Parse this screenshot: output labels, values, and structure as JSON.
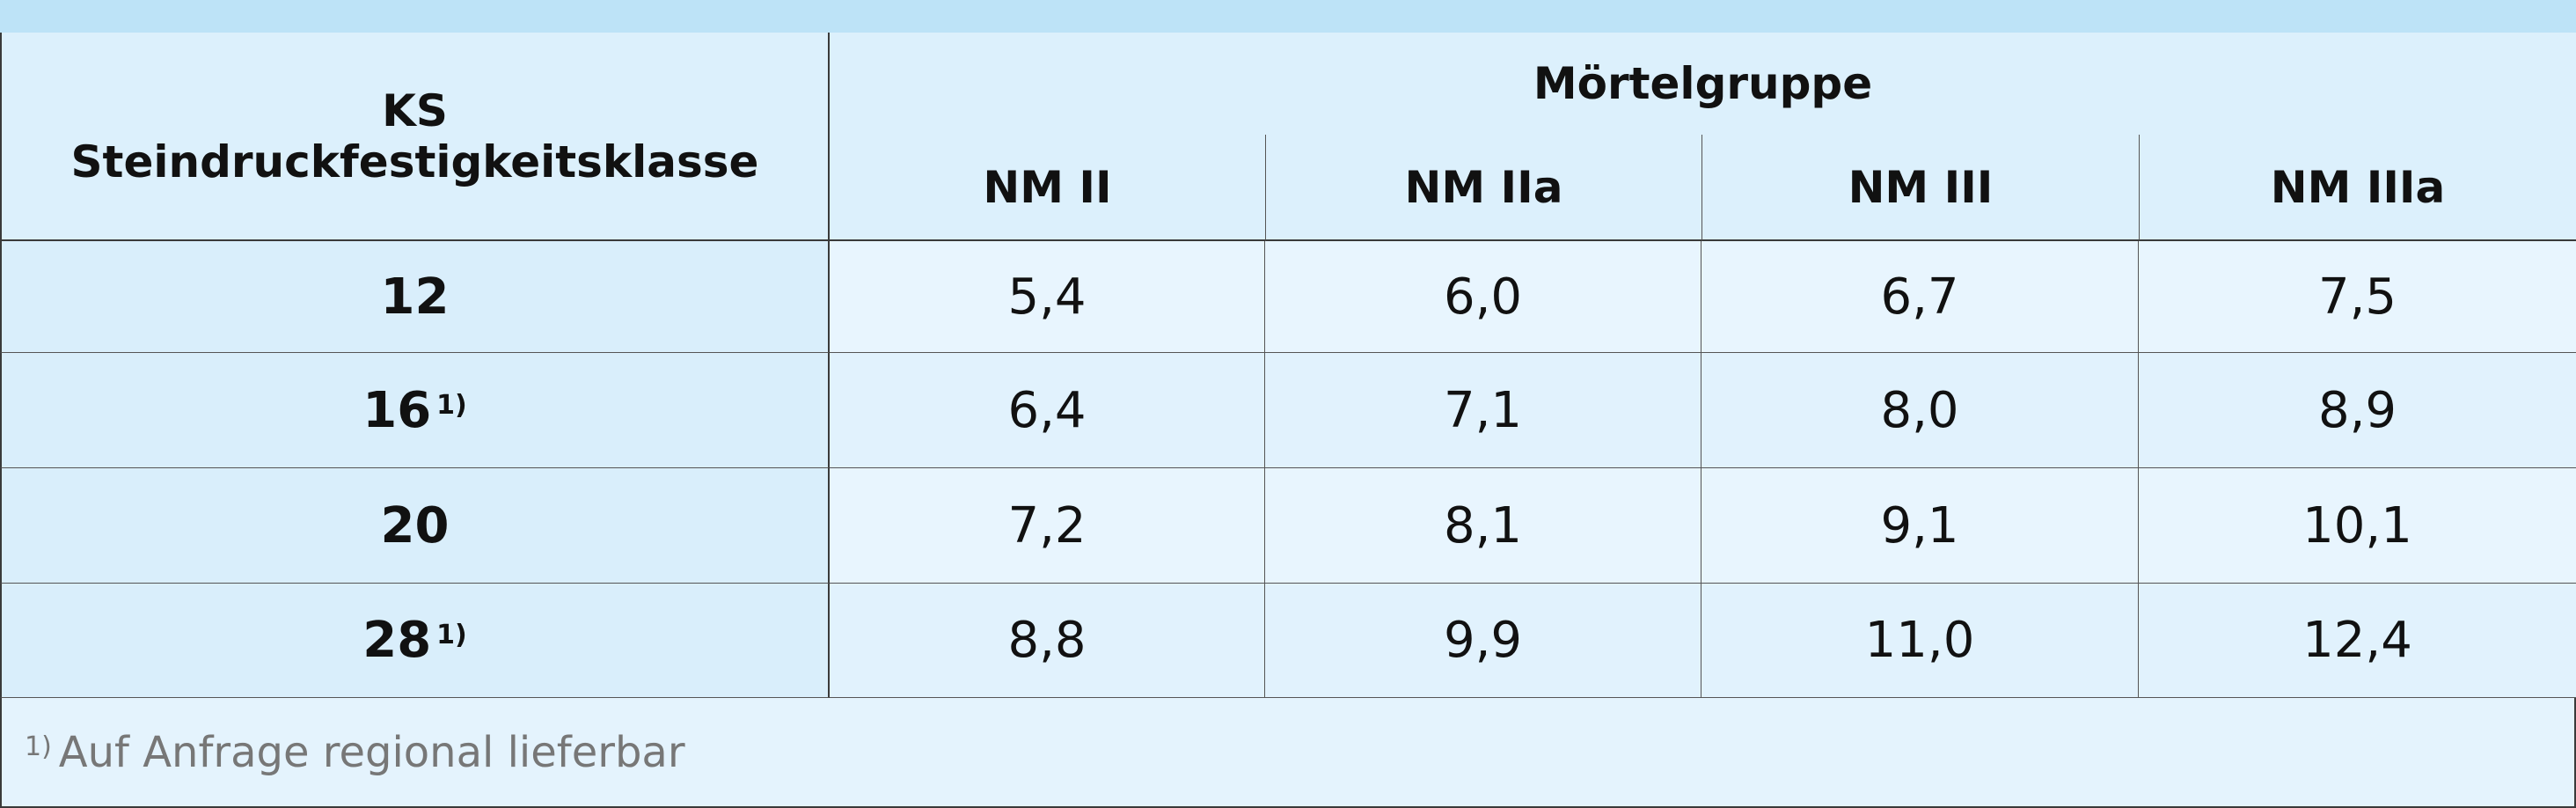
{
  "table": {
    "header": {
      "first_column": [
        "KS",
        "Steindruckfestigkeitsklasse"
      ],
      "group": "Mörtelgruppe",
      "columns": [
        "NM II",
        "NM IIa",
        "NM III",
        "NM IIIa"
      ]
    },
    "rows": [
      {
        "label": "12",
        "values": [
          "5,4",
          "6,0",
          "6,7",
          "7,5"
        ]
      },
      {
        "label": "16",
        "note": "1)",
        "values": [
          "6,4",
          "7,1",
          "8,0",
          "8,9"
        ]
      },
      {
        "label": "20",
        "values": [
          "7,2",
          "8,1",
          "9,1",
          "10,1"
        ]
      },
      {
        "label": "28",
        "note": "1)",
        "values": [
          "8,8",
          "9,9",
          "11,0",
          "12,4"
        ]
      }
    ]
  },
  "footnote": {
    "marker": "1)",
    "text": "Auf Anfrage regional lieferbar"
  }
}
